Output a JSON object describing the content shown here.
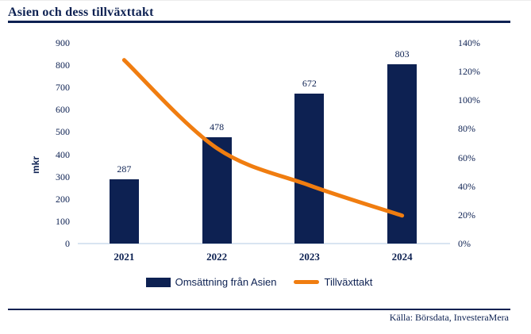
{
  "title": "Asien och dess tillväxttakt",
  "source_note": "Källa: Börsdata, InvesteraMera",
  "colors": {
    "navy": "#0D2152",
    "orange": "#F07D10",
    "axis_line": "#D9E5F1",
    "background": "#FFFFFF"
  },
  "legend": {
    "bar_label": "Omsättning från Asien",
    "line_label": "Tillväxttakt"
  },
  "chart_data": {
    "type": "bar",
    "subtype": "combo bar + smoothed line, dual y-axis",
    "title": "Asien och dess tillväxttakt",
    "categories": [
      "2021",
      "2022",
      "2023",
      "2024"
    ],
    "series": [
      {
        "name": "Omsättning från Asien",
        "chart_type": "bar",
        "axis": "left",
        "color": "#0D2152",
        "values": [
          287,
          478,
          672,
          803
        ],
        "data_labels": [
          "287",
          "478",
          "672",
          "803"
        ]
      },
      {
        "name": "Tillväxttakt",
        "chart_type": "line",
        "axis": "right",
        "color": "#F07D10",
        "values_percent": [
          128,
          66.6,
          40.6,
          19.5
        ]
      }
    ],
    "left_axis": {
      "label": "mkr",
      "min": 0,
      "max": 900,
      "step": 100
    },
    "right_axis": {
      "min": 0,
      "max": 140,
      "step": 20,
      "unit": "%"
    },
    "legend_position": "bottom",
    "grid": false,
    "data_labels_shown": true
  }
}
